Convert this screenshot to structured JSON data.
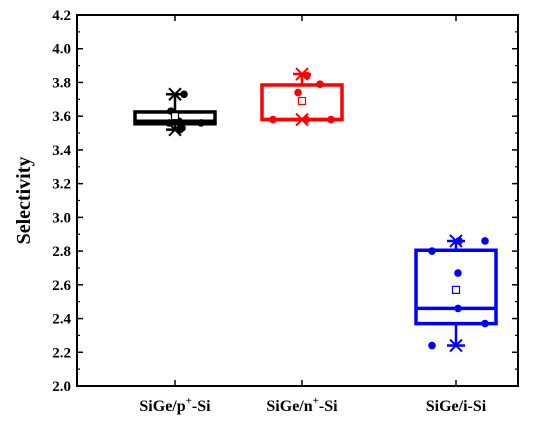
{
  "chart_data": {
    "type": "box",
    "ylabel": "Selectivity",
    "ylim": [
      2.0,
      4.2
    ],
    "ytick_step": 0.2,
    "grid": false,
    "legend": "none",
    "categories": [
      {
        "base": "SiGe/p",
        "sup": "+",
        "tail": "-Si"
      },
      {
        "base": "SiGe/n",
        "sup": "+",
        "tail": "-Si"
      },
      {
        "base": "SiGe/i-Si",
        "sup": "",
        "tail": ""
      }
    ],
    "boxes": [
      {
        "color": "#000000",
        "q1": 3.555,
        "median": 3.57,
        "q3": 3.625,
        "whisker_low": 3.52,
        "whisker_high": 3.73,
        "mean": 3.6,
        "max_marker": 3.73,
        "min_marker": 3.52,
        "points": [
          {
            "dx": -0.06,
            "y": 3.56
          },
          {
            "dx": -0.04,
            "y": 3.63
          },
          {
            "dx": 0.04,
            "y": 3.57
          },
          {
            "dx": 0.07,
            "y": 3.53
          },
          {
            "dx": 0.09,
            "y": 3.73
          },
          {
            "dx": 0.26,
            "y": 3.56
          },
          {
            "dx": 0.05,
            "y": 3.52
          }
        ]
      },
      {
        "color": "#ff0000",
        "q1": 3.58,
        "median": 3.58,
        "q3": 3.785,
        "whisker_low": 3.58,
        "whisker_high": 3.85,
        "mean": 3.69,
        "max_marker": 3.85,
        "min_marker": 3.58,
        "points": [
          {
            "dx": -0.29,
            "y": 3.58
          },
          {
            "dx": -0.04,
            "y": 3.74
          },
          {
            "dx": 0.04,
            "y": 3.58
          },
          {
            "dx": 0.05,
            "y": 3.84
          },
          {
            "dx": 0.18,
            "y": 3.79
          },
          {
            "dx": 0.29,
            "y": 3.58
          }
        ]
      },
      {
        "color": "#0000ff",
        "q1": 2.37,
        "median": 2.46,
        "q3": 2.805,
        "whisker_low": 2.24,
        "whisker_high": 2.86,
        "mean": 2.57,
        "max_marker": 2.86,
        "min_marker": 2.24,
        "points": [
          {
            "dx": -0.24,
            "y": 2.24
          },
          {
            "dx": -0.24,
            "y": 2.8
          },
          {
            "dx": 0.02,
            "y": 2.67
          },
          {
            "dx": 0.02,
            "y": 2.46
          },
          {
            "dx": 0.03,
            "y": 2.86
          },
          {
            "dx": 0.29,
            "y": 2.86
          },
          {
            "dx": 0.29,
            "y": 2.37
          }
        ]
      }
    ]
  }
}
